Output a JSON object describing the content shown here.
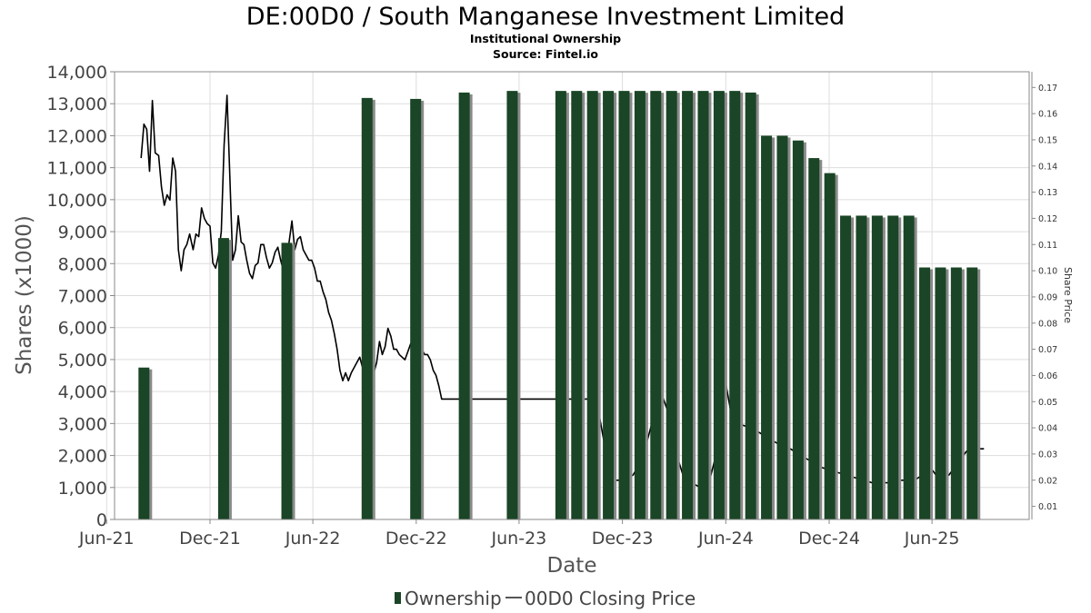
{
  "chart_data": {
    "type": "bar",
    "title": "DE:00D0 / South Manganese Investment Limited",
    "subtitle": "Institutional Ownership",
    "source": "Source: Fintel.io",
    "xlabel": "Date",
    "ylabel": "Shares (x1000)",
    "y2label": "Share Price",
    "ylim": [
      0,
      14000
    ],
    "y_ticks": [
      0,
      1000,
      2000,
      3000,
      4000,
      5000,
      6000,
      7000,
      8000,
      9000,
      10000,
      11000,
      12000,
      13000,
      14000
    ],
    "y_tick_labels": [
      "0",
      "1,000",
      "2,000",
      "3,000",
      "4,000",
      "5,000",
      "6,000",
      "7,000",
      "8,000",
      "9,000",
      "10,000",
      "11,000",
      "12,000",
      "13,000",
      "14,000"
    ],
    "y2lim": [
      0.005,
      0.176
    ],
    "y2_ticks": [
      0.01,
      0.02,
      0.03,
      0.04,
      0.05,
      0.06,
      0.07,
      0.08,
      0.09,
      0.1,
      0.11,
      0.12,
      0.13,
      0.14,
      0.15,
      0.16,
      0.17
    ],
    "y2_tick_labels": [
      "0.01",
      "0.02",
      "0.03",
      "0.04",
      "0.05",
      "0.06",
      "0.07",
      "0.08",
      "0.09",
      "0.10",
      "0.11",
      "0.12",
      "0.13",
      "0.14",
      "0.15",
      "0.16",
      "0.17"
    ],
    "x_range": [
      "2021-06-15",
      "2025-11-20"
    ],
    "x_ticks": [
      {
        "date": "2021-06-01",
        "label": "Jun-21"
      },
      {
        "date": "2021-12-01",
        "label": "Dec-21"
      },
      {
        "date": "2022-06-01",
        "label": "Jun-22"
      },
      {
        "date": "2022-12-01",
        "label": "Dec-22"
      },
      {
        "date": "2023-06-01",
        "label": "Jun-23"
      },
      {
        "date": "2023-12-01",
        "label": "Dec-23"
      },
      {
        "date": "2024-06-01",
        "label": "Jun-24"
      },
      {
        "date": "2024-12-01",
        "label": "Dec-24"
      },
      {
        "date": "2025-06-01",
        "label": "Jun-25"
      }
    ],
    "grid": true,
    "legend_position": "bottom",
    "series": [
      {
        "name": "Ownership",
        "type": "bar",
        "color": "#1a4526",
        "points": [
          [
            "2021-08-06",
            4750
          ],
          [
            "2021-12-25",
            8800
          ],
          [
            "2022-04-16",
            8650
          ],
          [
            "2022-09-05",
            13180
          ],
          [
            "2022-11-30",
            13150
          ],
          [
            "2023-02-24",
            13350
          ],
          [
            "2023-05-20",
            13400
          ],
          [
            "2023-08-14",
            13400
          ],
          [
            "2023-09-11",
            13400
          ],
          [
            "2023-10-09",
            13400
          ],
          [
            "2023-11-06",
            13400
          ],
          [
            "2023-12-04",
            13400
          ],
          [
            "2024-01-01",
            13400
          ],
          [
            "2024-01-29",
            13400
          ],
          [
            "2024-02-26",
            13400
          ],
          [
            "2024-03-25",
            13400
          ],
          [
            "2024-04-22",
            13400
          ],
          [
            "2024-05-20",
            13400
          ],
          [
            "2024-06-17",
            13400
          ],
          [
            "2024-07-15",
            13350
          ],
          [
            "2024-08-12",
            12000
          ],
          [
            "2024-09-09",
            12000
          ],
          [
            "2024-10-07",
            11850
          ],
          [
            "2024-11-04",
            11300
          ],
          [
            "2024-12-02",
            10830
          ],
          [
            "2024-12-30",
            9500
          ],
          [
            "2025-01-27",
            9500
          ],
          [
            "2025-02-24",
            9500
          ],
          [
            "2025-03-24",
            9500
          ],
          [
            "2025-04-21",
            9500
          ],
          [
            "2025-05-19",
            7880
          ],
          [
            "2025-06-16",
            7880
          ],
          [
            "2025-07-14",
            7880
          ],
          [
            "2025-08-11",
            7880
          ]
        ]
      },
      {
        "name": "00D0 Closing Price",
        "type": "line",
        "axis": "right",
        "color": "#000000",
        "points": [
          [
            "2021-08-01",
            0.143
          ],
          [
            "2021-08-06",
            0.156
          ],
          [
            "2021-08-11",
            0.154
          ],
          [
            "2021-08-16",
            0.138
          ],
          [
            "2021-08-21",
            0.165
          ],
          [
            "2021-08-26",
            0.145
          ],
          [
            "2021-09-01",
            0.144
          ],
          [
            "2021-09-06",
            0.132
          ],
          [
            "2021-09-11",
            0.125
          ],
          [
            "2021-09-16",
            0.129
          ],
          [
            "2021-09-21",
            0.127
          ],
          [
            "2021-09-26",
            0.143
          ],
          [
            "2021-10-01",
            0.138
          ],
          [
            "2021-10-06",
            0.108
          ],
          [
            "2021-10-11",
            0.1
          ],
          [
            "2021-10-16",
            0.108
          ],
          [
            "2021-10-21",
            0.11
          ],
          [
            "2021-10-26",
            0.114
          ],
          [
            "2021-11-01",
            0.108
          ],
          [
            "2021-11-06",
            0.114
          ],
          [
            "2021-11-11",
            0.113
          ],
          [
            "2021-11-16",
            0.124
          ],
          [
            "2021-11-21",
            0.12
          ],
          [
            "2021-11-26",
            0.118
          ],
          [
            "2021-12-01",
            0.117
          ],
          [
            "2021-12-06",
            0.103
          ],
          [
            "2021-12-11",
            0.101
          ],
          [
            "2021-12-16",
            0.106
          ],
          [
            "2021-12-21",
            0.115
          ],
          [
            "2021-12-26",
            0.148
          ],
          [
            "2021-12-31",
            0.167
          ],
          [
            "2022-01-05",
            0.136
          ],
          [
            "2022-01-10",
            0.104
          ],
          [
            "2022-01-15",
            0.108
          ],
          [
            "2022-01-20",
            0.121
          ],
          [
            "2022-01-25",
            0.111
          ],
          [
            "2022-01-30",
            0.11
          ],
          [
            "2022-02-04",
            0.104
          ],
          [
            "2022-02-09",
            0.099
          ],
          [
            "2022-02-14",
            0.097
          ],
          [
            "2022-02-19",
            0.102
          ],
          [
            "2022-02-24",
            0.103
          ],
          [
            "2022-03-01",
            0.11
          ],
          [
            "2022-03-06",
            0.11
          ],
          [
            "2022-03-11",
            0.105
          ],
          [
            "2022-03-16",
            0.101
          ],
          [
            "2022-03-21",
            0.103
          ],
          [
            "2022-03-26",
            0.107
          ],
          [
            "2022-03-31",
            0.109
          ],
          [
            "2022-04-05",
            0.104
          ],
          [
            "2022-04-10",
            0.1
          ],
          [
            "2022-04-15",
            0.104
          ],
          [
            "2022-04-20",
            0.111
          ],
          [
            "2022-04-25",
            0.119
          ],
          [
            "2022-04-30",
            0.108
          ],
          [
            "2022-05-05",
            0.112
          ],
          [
            "2022-05-10",
            0.113
          ],
          [
            "2022-05-15",
            0.108
          ],
          [
            "2022-05-20",
            0.106
          ],
          [
            "2022-05-25",
            0.104
          ],
          [
            "2022-05-30",
            0.104
          ],
          [
            "2022-06-04",
            0.101
          ],
          [
            "2022-06-09",
            0.096
          ],
          [
            "2022-06-14",
            0.096
          ],
          [
            "2022-06-19",
            0.092
          ],
          [
            "2022-06-24",
            0.089
          ],
          [
            "2022-06-29",
            0.084
          ],
          [
            "2022-07-04",
            0.081
          ],
          [
            "2022-07-09",
            0.076
          ],
          [
            "2022-07-14",
            0.07
          ],
          [
            "2022-07-19",
            0.062
          ],
          [
            "2022-07-24",
            0.058
          ],
          [
            "2022-07-29",
            0.061
          ],
          [
            "2022-08-03",
            0.058
          ],
          [
            "2022-08-08",
            0.061
          ],
          [
            "2022-08-13",
            0.063
          ],
          [
            "2022-08-18",
            0.065
          ],
          [
            "2022-08-23",
            0.067
          ],
          [
            "2022-08-28",
            0.063
          ],
          [
            "2022-09-02",
            0.059
          ],
          [
            "2022-09-07",
            0.057
          ],
          [
            "2022-09-12",
            0.059
          ],
          [
            "2022-09-17",
            0.061
          ],
          [
            "2022-09-22",
            0.065
          ],
          [
            "2022-09-27",
            0.073
          ],
          [
            "2022-10-02",
            0.068
          ],
          [
            "2022-10-07",
            0.071
          ],
          [
            "2022-10-12",
            0.078
          ],
          [
            "2022-10-17",
            0.075
          ],
          [
            "2022-10-22",
            0.07
          ],
          [
            "2022-10-27",
            0.07
          ],
          [
            "2022-11-01",
            0.068
          ],
          [
            "2022-11-06",
            0.067
          ],
          [
            "2022-11-11",
            0.066
          ],
          [
            "2022-11-16",
            0.069
          ],
          [
            "2022-11-21",
            0.072
          ],
          [
            "2022-11-26",
            0.074
          ],
          [
            "2022-12-01",
            0.078
          ],
          [
            "2022-12-06",
            0.075
          ],
          [
            "2022-12-11",
            0.07
          ],
          [
            "2022-12-16",
            0.068
          ],
          [
            "2022-12-21",
            0.068
          ],
          [
            "2022-12-26",
            0.066
          ],
          [
            "2022-12-31",
            0.062
          ],
          [
            "2023-01-05",
            0.06
          ],
          [
            "2023-01-10",
            0.056
          ],
          [
            "2023-01-15",
            0.051
          ],
          [
            "2023-01-20",
            0.051
          ],
          [
            "2023-09-20",
            0.051
          ],
          [
            "2023-10-05",
            0.051
          ],
          [
            "2023-10-20",
            0.046
          ],
          [
            "2023-10-30",
            0.034
          ],
          [
            "2023-11-10",
            0.022
          ],
          [
            "2023-11-20",
            0.02
          ],
          [
            "2023-12-05",
            0.02
          ],
          [
            "2023-12-20",
            0.022
          ],
          [
            "2024-01-05",
            0.028
          ],
          [
            "2024-01-20",
            0.04
          ],
          [
            "2024-02-01",
            0.05
          ],
          [
            "2024-02-10",
            0.052
          ],
          [
            "2024-02-20",
            0.046
          ],
          [
            "2024-03-01",
            0.035
          ],
          [
            "2024-03-10",
            0.027
          ],
          [
            "2024-03-20",
            0.02
          ],
          [
            "2024-04-01",
            0.019
          ],
          [
            "2024-04-10",
            0.018
          ],
          [
            "2024-04-20",
            0.017
          ],
          [
            "2024-05-01",
            0.018
          ],
          [
            "2024-05-15",
            0.03
          ],
          [
            "2024-05-25",
            0.042
          ],
          [
            "2024-06-01",
            0.057
          ],
          [
            "2024-06-10",
            0.046
          ],
          [
            "2024-06-20",
            0.044
          ],
          [
            "2024-07-01",
            0.041
          ],
          [
            "2024-07-15",
            0.04
          ],
          [
            "2024-08-01",
            0.038
          ],
          [
            "2024-08-15",
            0.036
          ],
          [
            "2024-09-01",
            0.034
          ],
          [
            "2024-09-15",
            0.033
          ],
          [
            "2024-10-01",
            0.031
          ],
          [
            "2024-10-15",
            0.029
          ],
          [
            "2024-11-01",
            0.027
          ],
          [
            "2024-11-15",
            0.025
          ],
          [
            "2024-12-01",
            0.024
          ],
          [
            "2024-12-15",
            0.023
          ],
          [
            "2025-01-01",
            0.022
          ],
          [
            "2025-01-15",
            0.021
          ],
          [
            "2025-02-01",
            0.02
          ],
          [
            "2025-02-15",
            0.019
          ],
          [
            "2025-03-01",
            0.019
          ],
          [
            "2025-03-15",
            0.019
          ],
          [
            "2025-04-01",
            0.02
          ],
          [
            "2025-04-15",
            0.02
          ],
          [
            "2025-05-01",
            0.02
          ],
          [
            "2025-05-15",
            0.022
          ],
          [
            "2025-06-01",
            0.024
          ],
          [
            "2025-06-15",
            0.02
          ],
          [
            "2025-07-01",
            0.022
          ],
          [
            "2025-07-15",
            0.026
          ],
          [
            "2025-08-01",
            0.031
          ],
          [
            "2025-08-15",
            0.032
          ],
          [
            "2025-09-01",
            0.032
          ]
        ]
      }
    ]
  }
}
